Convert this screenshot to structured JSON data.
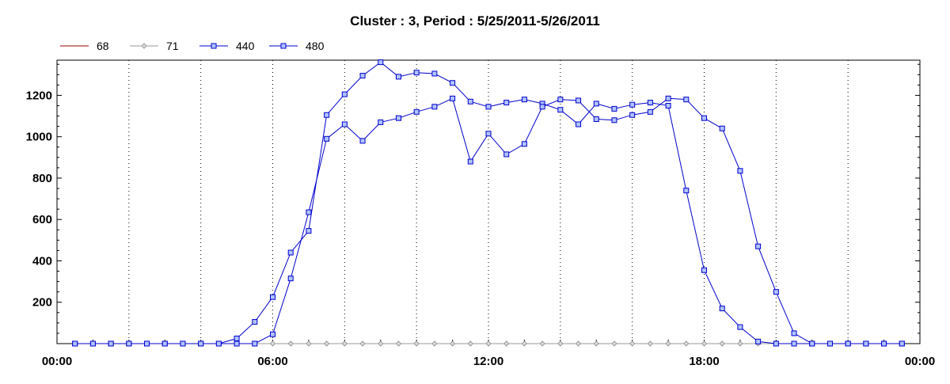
{
  "chart_data": {
    "type": "line",
    "title": "Cluster : 3, Period : 5/25/2011-5/26/2011",
    "x_ticks": [
      "00:00",
      "06:00",
      "12:00",
      "18:00",
      "00:00"
    ],
    "y_ticks": [
      200,
      400,
      600,
      800,
      1000,
      1200
    ],
    "xlim_hours": [
      0,
      24
    ],
    "ylim": [
      0,
      1370
    ],
    "grid": "vertical dotted lines every 2 hours",
    "legend_position": "top-left",
    "colors": {
      "s68": "#990000",
      "s71": "#999999",
      "s440": "#0000cc",
      "s480": "#0000cc"
    },
    "time_hours": [
      0.5,
      1,
      1.5,
      2,
      2.5,
      3,
      3.5,
      4,
      4.5,
      5,
      5.5,
      6,
      6.5,
      7,
      7.5,
      8,
      8.5,
      9,
      9.5,
      10,
      10.5,
      11,
      11.5,
      12,
      12.5,
      13,
      13.5,
      14,
      14.5,
      15,
      15.5,
      16,
      16.5,
      17,
      17.5,
      18,
      18.5,
      19,
      19.5,
      20,
      20.5,
      21,
      21.5,
      22,
      22.5,
      23,
      23.5
    ],
    "series": [
      {
        "name": "68",
        "marker": "none",
        "values": [
          0,
          0,
          0,
          0,
          0,
          0,
          0,
          0,
          0,
          0,
          0,
          0,
          0,
          0,
          0,
          0,
          0,
          0,
          0,
          0,
          0,
          0,
          0,
          0,
          0,
          0,
          0,
          0,
          0,
          0,
          0,
          0,
          0,
          0,
          0,
          0,
          0,
          0,
          0,
          0,
          0,
          0,
          0,
          0,
          0,
          0,
          0
        ]
      },
      {
        "name": "71",
        "marker": "diamond",
        "values": [
          0,
          0,
          0,
          0,
          0,
          0,
          0,
          0,
          0,
          0,
          0,
          0,
          0,
          0,
          0,
          0,
          0,
          0,
          0,
          0,
          0,
          0,
          0,
          0,
          0,
          0,
          0,
          0,
          0,
          0,
          0,
          0,
          0,
          0,
          0,
          0,
          0,
          0,
          0,
          0,
          0,
          0,
          0,
          0,
          0,
          0,
          0
        ]
      },
      {
        "name": "440",
        "marker": "square",
        "values": [
          0,
          0,
          0,
          0,
          0,
          0,
          0,
          0,
          0,
          25,
          105,
          225,
          440,
          545,
          1105,
          1205,
          1295,
          1360,
          1290,
          1310,
          1305,
          1260,
          1170,
          1145,
          1165,
          1180,
          1160,
          1130,
          1060,
          1160,
          1135,
          1155,
          1165,
          1150,
          740,
          355,
          170,
          80,
          10,
          0,
          0,
          0,
          0,
          0,
          0,
          0,
          0
        ]
      },
      {
        "name": "480",
        "marker": "square",
        "values": [
          0,
          0,
          0,
          0,
          0,
          0,
          0,
          0,
          0,
          0,
          0,
          45,
          315,
          635,
          990,
          1060,
          980,
          1070,
          1090,
          1120,
          1145,
          1185,
          880,
          1015,
          915,
          965,
          1145,
          1180,
          1175,
          1085,
          1080,
          1105,
          1120,
          1185,
          1180,
          1090,
          1040,
          835,
          470,
          250,
          50,
          0,
          0,
          0,
          0,
          0,
          0
        ]
      }
    ]
  }
}
